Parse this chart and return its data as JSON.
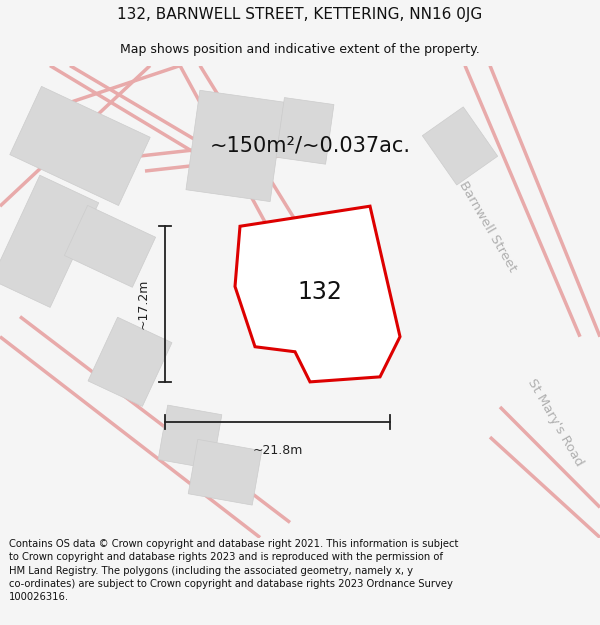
{
  "title": "132, BARNWELL STREET, KETTERING, NN16 0JG",
  "subtitle": "Map shows position and indicative extent of the property.",
  "area_text": "~150m²/~0.037ac.",
  "label": "132",
  "dim_width": "~21.8m",
  "dim_height": "~17.2m",
  "footer": "Contains OS data © Crown copyright and database right 2021. This information is subject to Crown copyright and database rights 2023 and is reproduced with the permission of HM Land Registry. The polygons (including the associated geometry, namely x, y co-ordinates) are subject to Crown copyright and database rights 2023 Ordnance Survey 100026316.",
  "bg_color": "#f5f5f5",
  "map_bg": "#eeeeee",
  "property_color": "#dd0000",
  "road_stroke": "#e8aaaa",
  "building_color": "#d8d8d8",
  "building_edge": "#cccccc",
  "road_label_color": "#b0b0b0",
  "property_fill": "white",
  "dim_color": "#222222",
  "title_fontsize": 11,
  "subtitle_fontsize": 9,
  "area_fontsize": 15,
  "label_fontsize": 17,
  "footer_fontsize": 7.2,
  "dim_fontsize": 9,
  "road_label_fontsize": 9.5
}
